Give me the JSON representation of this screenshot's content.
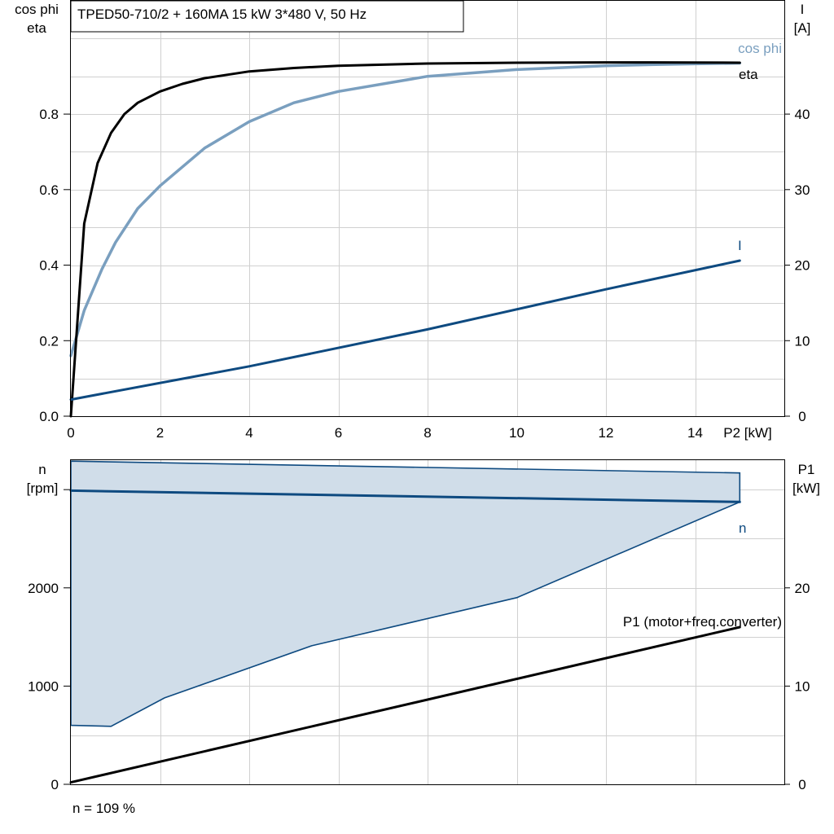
{
  "title": "TPED50-710/2 + 160MA   15 kW   3*480 V, 50 Hz",
  "footer": "n = 109 %",
  "colors": {
    "cosphi": "#7a9fbf",
    "eta": "#000000",
    "current": "#0e4a80",
    "speed": "#0e4a80",
    "area_fill": "#d0dde9",
    "area_stroke": "#0e4a80",
    "p1": "#000000",
    "grid": "#d0d0d0"
  },
  "chart_data": [
    {
      "type": "line",
      "x_label": "P2 [kW]",
      "y_left_label": [
        "cos phi",
        "eta"
      ],
      "y_right_label": [
        "I",
        "[A]"
      ],
      "x_ticks": [
        0,
        2,
        4,
        6,
        8,
        10,
        12,
        14
      ],
      "y_left_ticks": [
        0.0,
        0.2,
        0.4,
        0.6,
        0.8
      ],
      "y_left_tick_labels": [
        "0.0",
        "0.2",
        "0.4",
        "0.6",
        "0.8"
      ],
      "y_right_ticks": [
        0,
        10,
        20,
        30,
        40
      ],
      "xlim": [
        0,
        16
      ],
      "ylim_left": [
        0,
        1.1
      ],
      "ylim_right": [
        0,
        55
      ],
      "grid": true,
      "series": [
        {
          "name": "eta",
          "axis": "left",
          "x": [
            0,
            0.3,
            0.6,
            0.9,
            1.2,
            1.5,
            2,
            2.5,
            3,
            4,
            5,
            6,
            8,
            10,
            12,
            13,
            15
          ],
          "y": [
            0,
            0.51,
            0.67,
            0.75,
            0.8,
            0.83,
            0.86,
            0.88,
            0.895,
            0.913,
            0.922,
            0.928,
            0.934,
            0.936,
            0.937,
            0.937,
            0.936
          ]
        },
        {
          "name": "cos phi",
          "axis": "left",
          "x": [
            0,
            0.3,
            0.7,
            1,
            1.5,
            2,
            3,
            4,
            5,
            6,
            8,
            10,
            12,
            13,
            14,
            15
          ],
          "y": [
            0.16,
            0.28,
            0.39,
            0.46,
            0.55,
            0.61,
            0.71,
            0.78,
            0.83,
            0.86,
            0.9,
            0.918,
            0.928,
            0.931,
            0.933,
            0.935
          ]
        },
        {
          "name": "I",
          "axis": "right",
          "x": [
            0,
            4,
            8,
            12,
            15
          ],
          "y": [
            2.2,
            6.6,
            11.5,
            16.8,
            20.6
          ]
        }
      ]
    },
    {
      "type": "area",
      "y_left_label": [
        "n",
        "[rpm]"
      ],
      "y_right_label": [
        "P1",
        "[kW]"
      ],
      "y_left_ticks": [
        0,
        1000,
        2000
      ],
      "y_right_ticks": [
        0,
        10,
        20
      ],
      "xlim": [
        0,
        16
      ],
      "ylim_left": [
        0,
        3300
      ],
      "ylim_right": [
        0,
        33
      ],
      "grid": true,
      "series": [
        {
          "name": "n",
          "axis": "left",
          "x": [
            0,
            15
          ],
          "y": [
            2990,
            2875
          ]
        },
        {
          "name": "P1 (motor+freq.converter)",
          "axis": "right",
          "x": [
            0,
            15
          ],
          "y": [
            0.2,
            16
          ]
        }
      ],
      "range": {
        "x_upper": [
          0,
          15,
          15
        ],
        "y_upper": [
          3290,
          3170,
          2875
        ],
        "x_lower": [
          15,
          10,
          5.4,
          2.1,
          0.9,
          0
        ],
        "y_lower": [
          2875,
          1900,
          1410,
          880,
          590,
          600
        ]
      }
    }
  ]
}
